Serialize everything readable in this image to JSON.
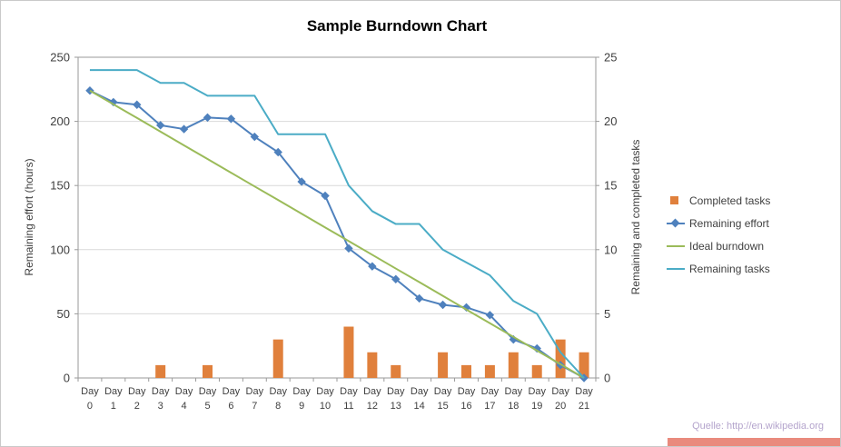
{
  "title": "Sample Burndown Chart",
  "source_note": "Quelle: http://en.wikipedia.org",
  "footer": {
    "strip_color": "#e98a7d"
  },
  "chart_data": {
    "type": "bar",
    "subtype": "combo-bar-line",
    "title": "Sample Burndown Chart",
    "categories_prefix": "Day",
    "categories": [
      0,
      1,
      2,
      3,
      4,
      5,
      6,
      7,
      8,
      9,
      10,
      11,
      12,
      13,
      14,
      15,
      16,
      17,
      18,
      19,
      20,
      21
    ],
    "series": [
      {
        "name": "Completed tasks",
        "type": "bar",
        "axis": "right",
        "color": "#E0803C",
        "values": [
          0,
          0,
          0,
          1,
          0,
          1,
          0,
          0,
          3,
          0,
          0,
          4,
          2,
          1,
          0,
          2,
          1,
          1,
          2,
          1,
          3,
          2
        ]
      },
      {
        "name": "Remaining effort",
        "type": "line",
        "axis": "left",
        "color": "#4F81BD",
        "marker": "diamond",
        "values": [
          224,
          215,
          213,
          197,
          194,
          203,
          202,
          188,
          176,
          153,
          142,
          101,
          87,
          77,
          62,
          57,
          55,
          49,
          30,
          23,
          10,
          0
        ]
      },
      {
        "name": "Ideal burndown",
        "type": "line",
        "axis": "left",
        "color": "#9BBB59",
        "values": [
          224,
          213.3,
          202.7,
          192,
          181.3,
          170.7,
          160,
          149.3,
          138.7,
          128,
          117.3,
          106.7,
          96,
          85.3,
          74.7,
          64,
          53.3,
          42.7,
          32,
          21.3,
          10.7,
          0
        ]
      },
      {
        "name": "Remaining tasks",
        "type": "line",
        "axis": "right",
        "color": "#4BACC6",
        "values": [
          24,
          24,
          24,
          23,
          23,
          22,
          22,
          22,
          19,
          19,
          19,
          15,
          13,
          12,
          12,
          10,
          9,
          8,
          6,
          5,
          2,
          0
        ]
      }
    ],
    "left_axis": {
      "label": "Remaining effort (hours)",
      "min": 0,
      "max": 250,
      "step": 50
    },
    "right_axis": {
      "label": "Remaining and completed tasks",
      "min": 0,
      "max": 25,
      "step": 5
    },
    "grid": true,
    "grid_color": "#d9d9d9",
    "axis_color": "#9a9a9a",
    "legend_position": "right"
  }
}
